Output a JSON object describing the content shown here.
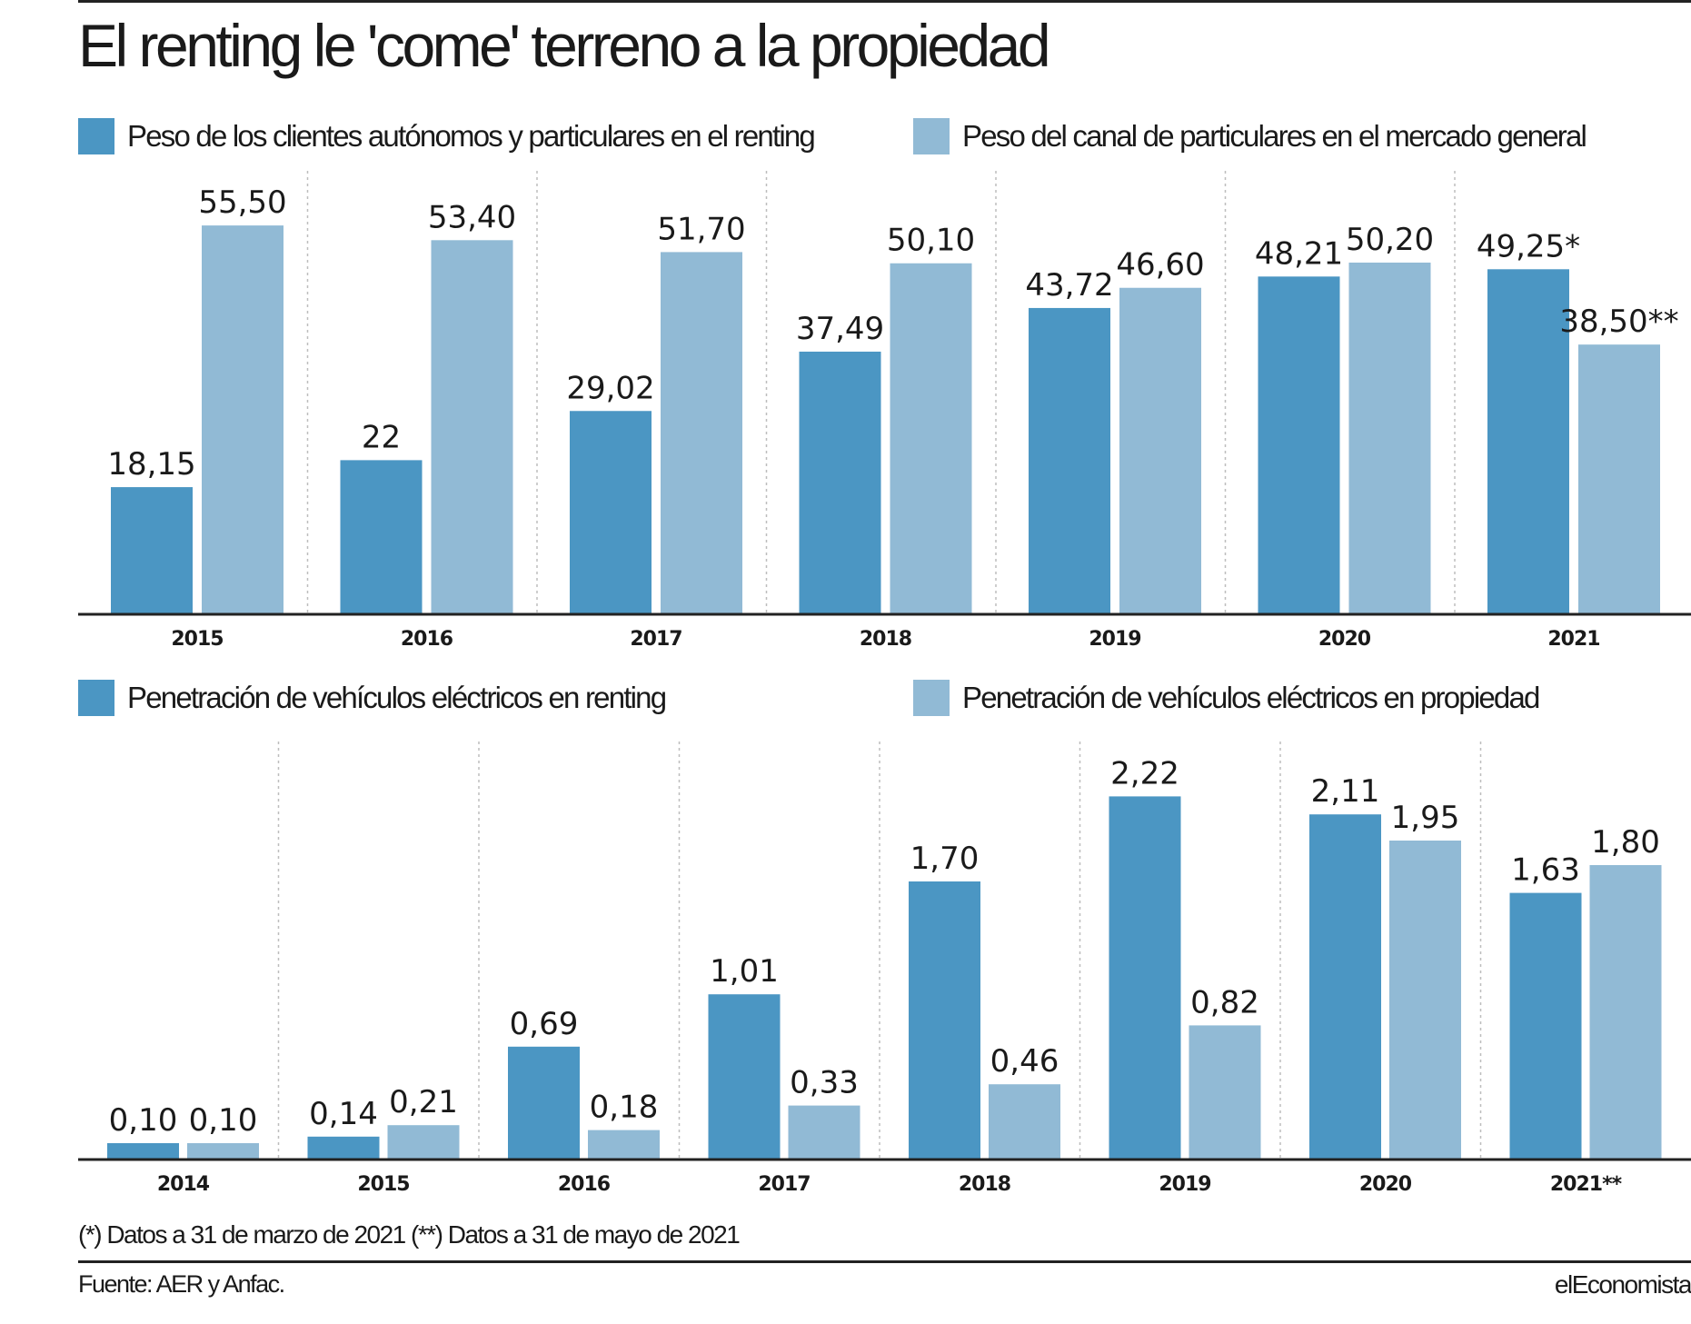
{
  "title": "El renting le 'come' terreno a la propiedad",
  "colors": {
    "dark": "#4b96c3",
    "light": "#91bad5",
    "axis": "#222222",
    "grid": "#bdbdbd"
  },
  "chart_data": [
    {
      "type": "bar",
      "categories": [
        "2015",
        "2016",
        "2017",
        "2018",
        "2019",
        "2020",
        "2021"
      ],
      "series": [
        {
          "name": "Peso de los clientes autónomos y particulares en el renting",
          "values": [
            18.15,
            22,
            29.02,
            37.49,
            43.72,
            48.21,
            49.25
          ],
          "labels": [
            "18,15",
            "22",
            "29,02",
            "37,49",
            "43,72",
            "48,21",
            "49,25*"
          ]
        },
        {
          "name": "Peso del canal de particulares en el mercado general",
          "values": [
            55.5,
            53.4,
            51.7,
            50.1,
            46.6,
            50.2,
            38.5
          ],
          "labels": [
            "55,50",
            "53,40",
            "51,70",
            "50,10",
            "46,60",
            "50,20",
            "38,50**"
          ]
        }
      ],
      "ylim": [
        0,
        62
      ],
      "grid": "vertical dotted separators"
    },
    {
      "type": "bar",
      "categories": [
        "2014",
        "2015",
        "2016",
        "2017",
        "2018",
        "2019",
        "2020",
        "2021**"
      ],
      "series": [
        {
          "name": "Penetración de vehículos eléctricos en renting",
          "values": [
            0.1,
            0.14,
            0.69,
            1.01,
            1.7,
            2.22,
            2.11,
            1.63
          ],
          "labels": [
            "0,10",
            "0,14",
            "0,69",
            "1,01",
            "1,70",
            "2,22",
            "2,11",
            "1,63"
          ]
        },
        {
          "name": "Penetración de vehículos eléctricos en propiedad",
          "values": [
            0.1,
            0.21,
            0.18,
            0.33,
            0.46,
            0.82,
            1.95,
            1.8
          ],
          "labels": [
            "0,10",
            "0,21",
            "0,18",
            "0,33",
            "0,46",
            "0,82",
            "1,95",
            "1,80"
          ]
        }
      ],
      "ylim": [
        0,
        2.5
      ],
      "grid": "vertical dotted separators"
    }
  ],
  "footnote": "(*) Datos a 31 de marzo de 2021 (**) Datos a 31 de mayo de 2021",
  "source": "Fuente: AER y Anfac.",
  "brand": "elEconomista"
}
